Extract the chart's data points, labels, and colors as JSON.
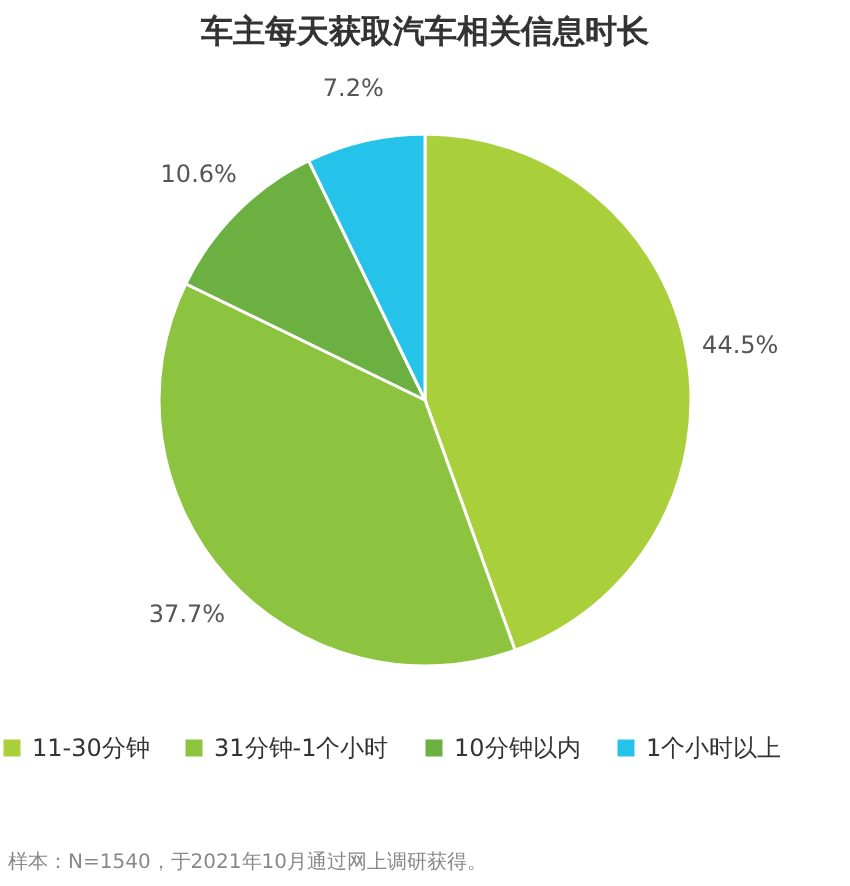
{
  "chart_data": {
    "type": "pie",
    "title": "车主每天获取汽车相关信息时长",
    "categories": [
      "11-30分钟",
      "31分钟-1个小时",
      "10分钟以内",
      "1个小时以上"
    ],
    "values": [
      44.5,
      37.7,
      10.6,
      7.2
    ],
    "value_labels": [
      "44.5%",
      "37.7%",
      "10.6%",
      "7.2%"
    ],
    "colors": [
      "#a9d03b",
      "#8cc43f",
      "#6bb040",
      "#25c3ea"
    ],
    "legend": "bottom",
    "annotations": [
      "样本：N=1540，于2021年10月通过网上调研获得。"
    ]
  }
}
